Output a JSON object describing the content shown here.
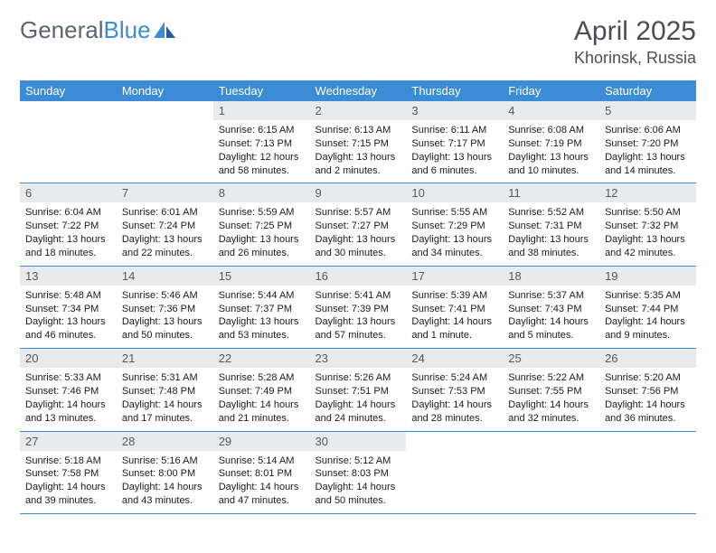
{
  "brand": {
    "part1": "General",
    "part2": "Blue"
  },
  "title": "April 2025",
  "location": "Khorinsk, Russia",
  "colors": {
    "header_bg": "#3b8cd4",
    "header_text": "#ffffff",
    "daynum_bg": "#e8eaec",
    "daynum_text": "#555a60",
    "body_text": "#1a1a1a",
    "rule": "#3b8cd4",
    "logo_gray": "#5a6570",
    "logo_blue": "#3b8cd4",
    "page_bg": "#ffffff"
  },
  "weekdays": [
    "Sunday",
    "Monday",
    "Tuesday",
    "Wednesday",
    "Thursday",
    "Friday",
    "Saturday"
  ],
  "weeks": [
    [
      null,
      null,
      {
        "n": "1",
        "sr": "6:15 AM",
        "ss": "7:13 PM",
        "dl": "12 hours and 58 minutes."
      },
      {
        "n": "2",
        "sr": "6:13 AM",
        "ss": "7:15 PM",
        "dl": "13 hours and 2 minutes."
      },
      {
        "n": "3",
        "sr": "6:11 AM",
        "ss": "7:17 PM",
        "dl": "13 hours and 6 minutes."
      },
      {
        "n": "4",
        "sr": "6:08 AM",
        "ss": "7:19 PM",
        "dl": "13 hours and 10 minutes."
      },
      {
        "n": "5",
        "sr": "6:06 AM",
        "ss": "7:20 PM",
        "dl": "13 hours and 14 minutes."
      }
    ],
    [
      {
        "n": "6",
        "sr": "6:04 AM",
        "ss": "7:22 PM",
        "dl": "13 hours and 18 minutes."
      },
      {
        "n": "7",
        "sr": "6:01 AM",
        "ss": "7:24 PM",
        "dl": "13 hours and 22 minutes."
      },
      {
        "n": "8",
        "sr": "5:59 AM",
        "ss": "7:25 PM",
        "dl": "13 hours and 26 minutes."
      },
      {
        "n": "9",
        "sr": "5:57 AM",
        "ss": "7:27 PM",
        "dl": "13 hours and 30 minutes."
      },
      {
        "n": "10",
        "sr": "5:55 AM",
        "ss": "7:29 PM",
        "dl": "13 hours and 34 minutes."
      },
      {
        "n": "11",
        "sr": "5:52 AM",
        "ss": "7:31 PM",
        "dl": "13 hours and 38 minutes."
      },
      {
        "n": "12",
        "sr": "5:50 AM",
        "ss": "7:32 PM",
        "dl": "13 hours and 42 minutes."
      }
    ],
    [
      {
        "n": "13",
        "sr": "5:48 AM",
        "ss": "7:34 PM",
        "dl": "13 hours and 46 minutes."
      },
      {
        "n": "14",
        "sr": "5:46 AM",
        "ss": "7:36 PM",
        "dl": "13 hours and 50 minutes."
      },
      {
        "n": "15",
        "sr": "5:44 AM",
        "ss": "7:37 PM",
        "dl": "13 hours and 53 minutes."
      },
      {
        "n": "16",
        "sr": "5:41 AM",
        "ss": "7:39 PM",
        "dl": "13 hours and 57 minutes."
      },
      {
        "n": "17",
        "sr": "5:39 AM",
        "ss": "7:41 PM",
        "dl": "14 hours and 1 minute."
      },
      {
        "n": "18",
        "sr": "5:37 AM",
        "ss": "7:43 PM",
        "dl": "14 hours and 5 minutes."
      },
      {
        "n": "19",
        "sr": "5:35 AM",
        "ss": "7:44 PM",
        "dl": "14 hours and 9 minutes."
      }
    ],
    [
      {
        "n": "20",
        "sr": "5:33 AM",
        "ss": "7:46 PM",
        "dl": "14 hours and 13 minutes."
      },
      {
        "n": "21",
        "sr": "5:31 AM",
        "ss": "7:48 PM",
        "dl": "14 hours and 17 minutes."
      },
      {
        "n": "22",
        "sr": "5:28 AM",
        "ss": "7:49 PM",
        "dl": "14 hours and 21 minutes."
      },
      {
        "n": "23",
        "sr": "5:26 AM",
        "ss": "7:51 PM",
        "dl": "14 hours and 24 minutes."
      },
      {
        "n": "24",
        "sr": "5:24 AM",
        "ss": "7:53 PM",
        "dl": "14 hours and 28 minutes."
      },
      {
        "n": "25",
        "sr": "5:22 AM",
        "ss": "7:55 PM",
        "dl": "14 hours and 32 minutes."
      },
      {
        "n": "26",
        "sr": "5:20 AM",
        "ss": "7:56 PM",
        "dl": "14 hours and 36 minutes."
      }
    ],
    [
      {
        "n": "27",
        "sr": "5:18 AM",
        "ss": "7:58 PM",
        "dl": "14 hours and 39 minutes."
      },
      {
        "n": "28",
        "sr": "5:16 AM",
        "ss": "8:00 PM",
        "dl": "14 hours and 43 minutes."
      },
      {
        "n": "29",
        "sr": "5:14 AM",
        "ss": "8:01 PM",
        "dl": "14 hours and 47 minutes."
      },
      {
        "n": "30",
        "sr": "5:12 AM",
        "ss": "8:03 PM",
        "dl": "14 hours and 50 minutes."
      },
      null,
      null,
      null
    ]
  ],
  "labels": {
    "sunrise": "Sunrise:",
    "sunset": "Sunset:",
    "daylight": "Daylight:"
  }
}
